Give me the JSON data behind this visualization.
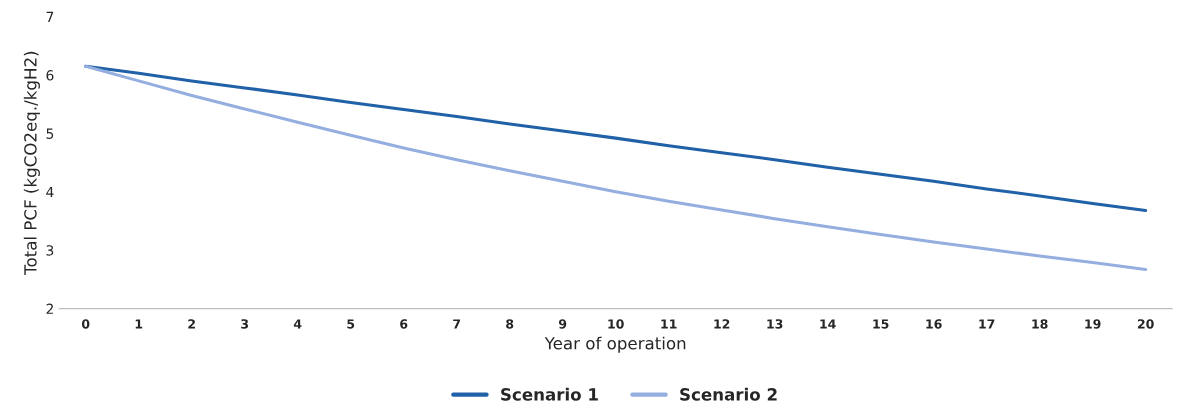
{
  "chart_data": {
    "type": "line",
    "xlabel": "Year of operation",
    "ylabel": "Total PCF (kgCO2eq./kgH2)",
    "categories": [
      "0",
      "1",
      "2",
      "3",
      "4",
      "5",
      "6",
      "7",
      "8",
      "9",
      "10",
      "11",
      "12",
      "13",
      "14",
      "15",
      "16",
      "17",
      "18",
      "19",
      "20"
    ],
    "series": [
      {
        "name": "Scenario 1",
        "color": "#2161a8",
        "values": [
          6.15,
          6.03,
          5.9,
          5.78,
          5.66,
          5.53,
          5.41,
          5.29,
          5.16,
          5.04,
          4.92,
          4.79,
          4.67,
          4.55,
          4.42,
          4.3,
          4.18,
          4.05,
          3.93,
          3.8,
          3.68
        ]
      },
      {
        "name": "Scenario 2",
        "color": "#94aee0",
        "values": [
          6.15,
          5.9,
          5.65,
          5.42,
          5.19,
          4.97,
          4.75,
          4.55,
          4.36,
          4.18,
          4.0,
          3.84,
          3.69,
          3.54,
          3.4,
          3.27,
          3.14,
          3.02,
          2.9,
          2.79,
          2.67
        ]
      }
    ],
    "ylim": [
      2,
      7
    ],
    "yticks": [
      2,
      3,
      4,
      5,
      6,
      7
    ],
    "grid": false,
    "legend": "bottom",
    "marker": "none",
    "line_style": "solid"
  }
}
